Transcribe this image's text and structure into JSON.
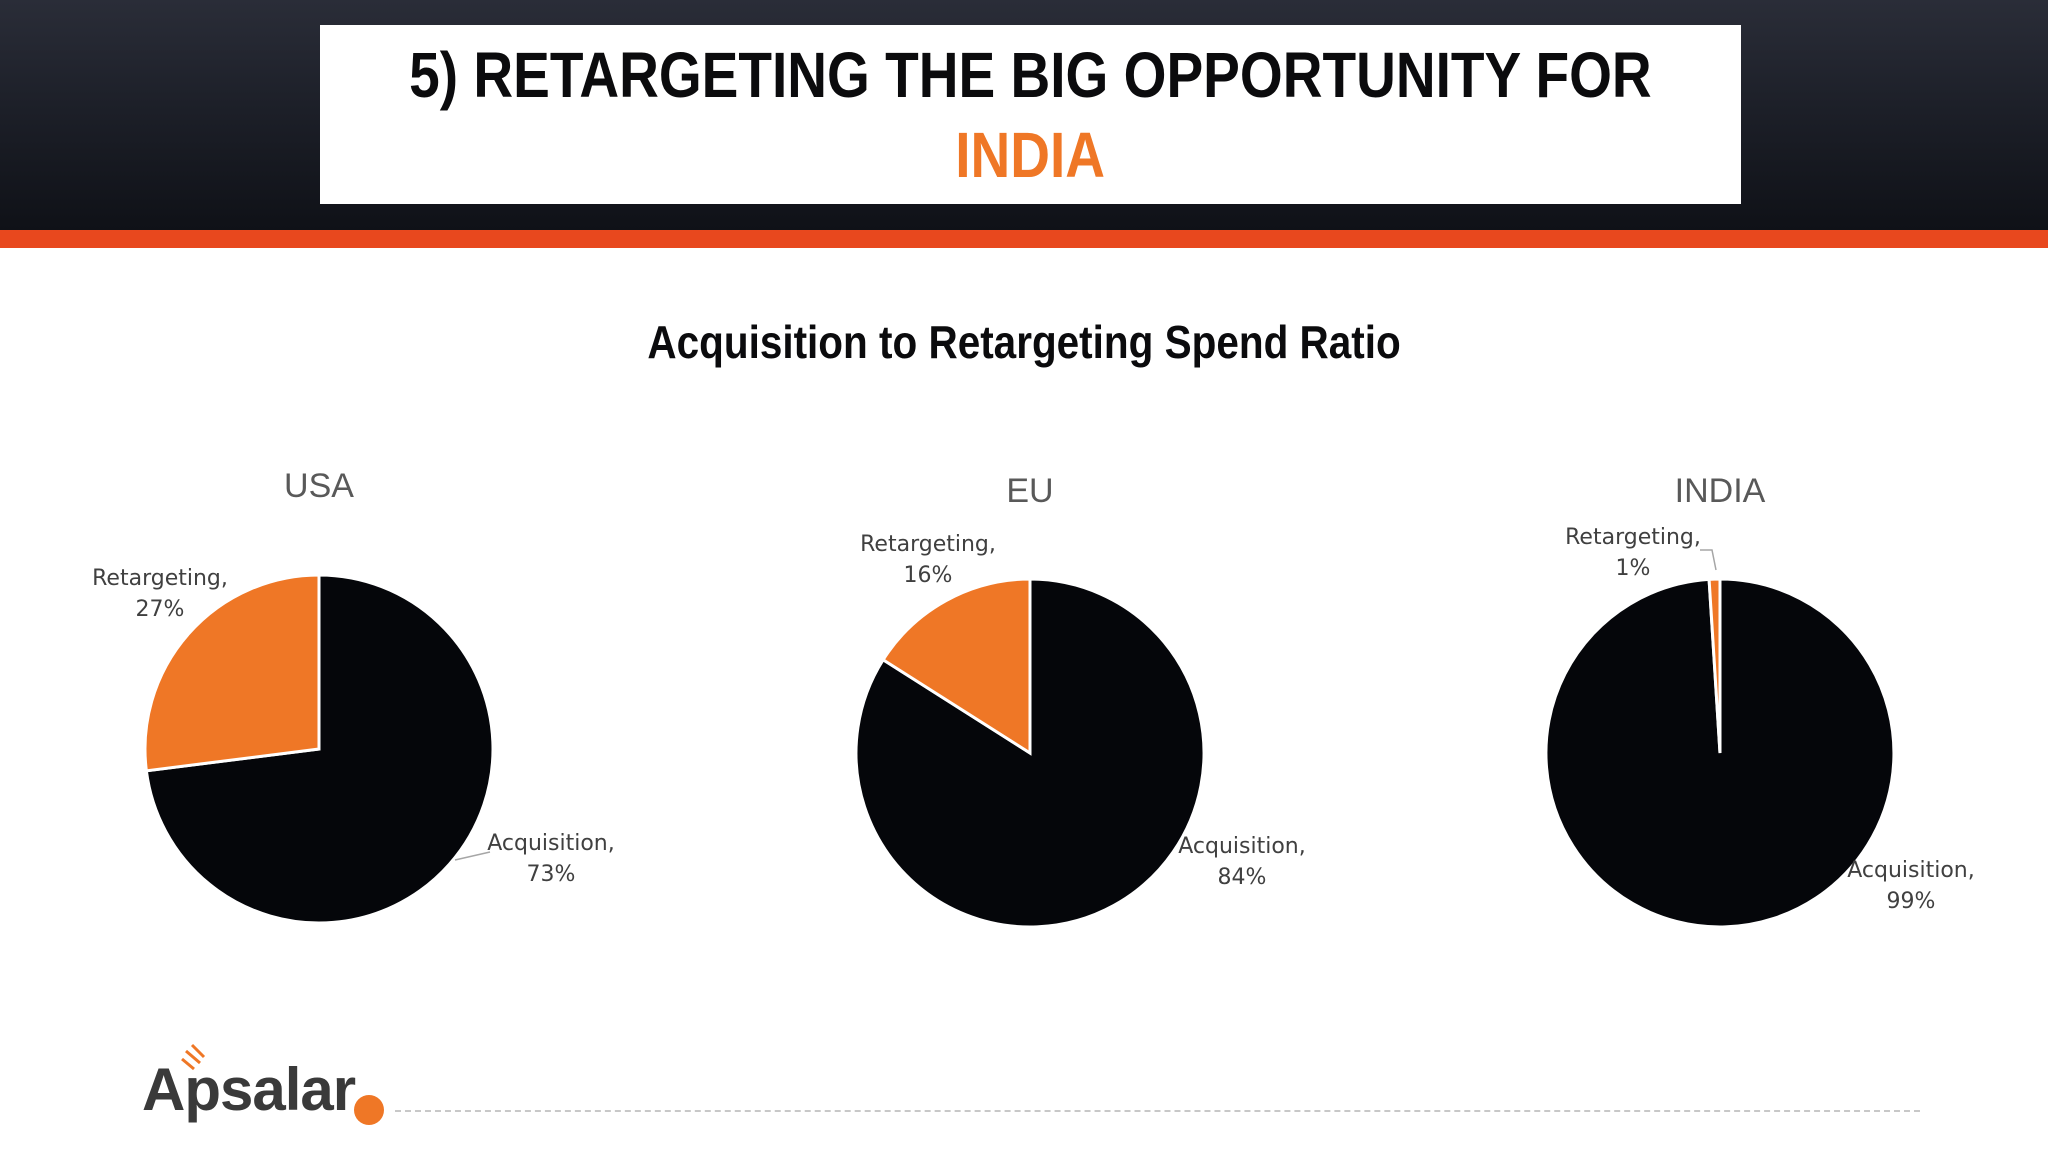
{
  "slide": {
    "title_line1": "5) RETARGETING THE BIG OPPORTUNITY FOR",
    "title_line2": "INDIA",
    "title_accent_color": "#ef7726",
    "bar_color": "#e8481e"
  },
  "chart_data": [
    {
      "type": "pie",
      "title": "USA",
      "categories": [
        "Acquisition",
        "Retargeting"
      ],
      "values": [
        73,
        27
      ],
      "labels": [
        [
          "Acquisition,",
          "73%"
        ],
        [
          "Retargeting,",
          "27%"
        ]
      ],
      "colors": [
        "#05060a",
        "#ef7726"
      ]
    },
    {
      "type": "pie",
      "title": "EU",
      "categories": [
        "Acquisition",
        "Retargeting"
      ],
      "values": [
        84,
        16
      ],
      "labels": [
        [
          "Acquisition,",
          "84%"
        ],
        [
          "Retargeting,",
          "16%"
        ]
      ],
      "colors": [
        "#05060a",
        "#ef7726"
      ]
    },
    {
      "type": "pie",
      "title": "INDIA",
      "categories": [
        "Acquisition",
        "Retargeting"
      ],
      "values": [
        99,
        1
      ],
      "labels": [
        [
          "Acquisition,",
          "99%"
        ],
        [
          "Retargeting,",
          "1%"
        ]
      ],
      "colors": [
        "#05060a",
        "#ef7726"
      ]
    }
  ],
  "main_chart_title": "Acquisition to Retargeting Spend Ratio",
  "logo": {
    "text": "Apsalar"
  }
}
